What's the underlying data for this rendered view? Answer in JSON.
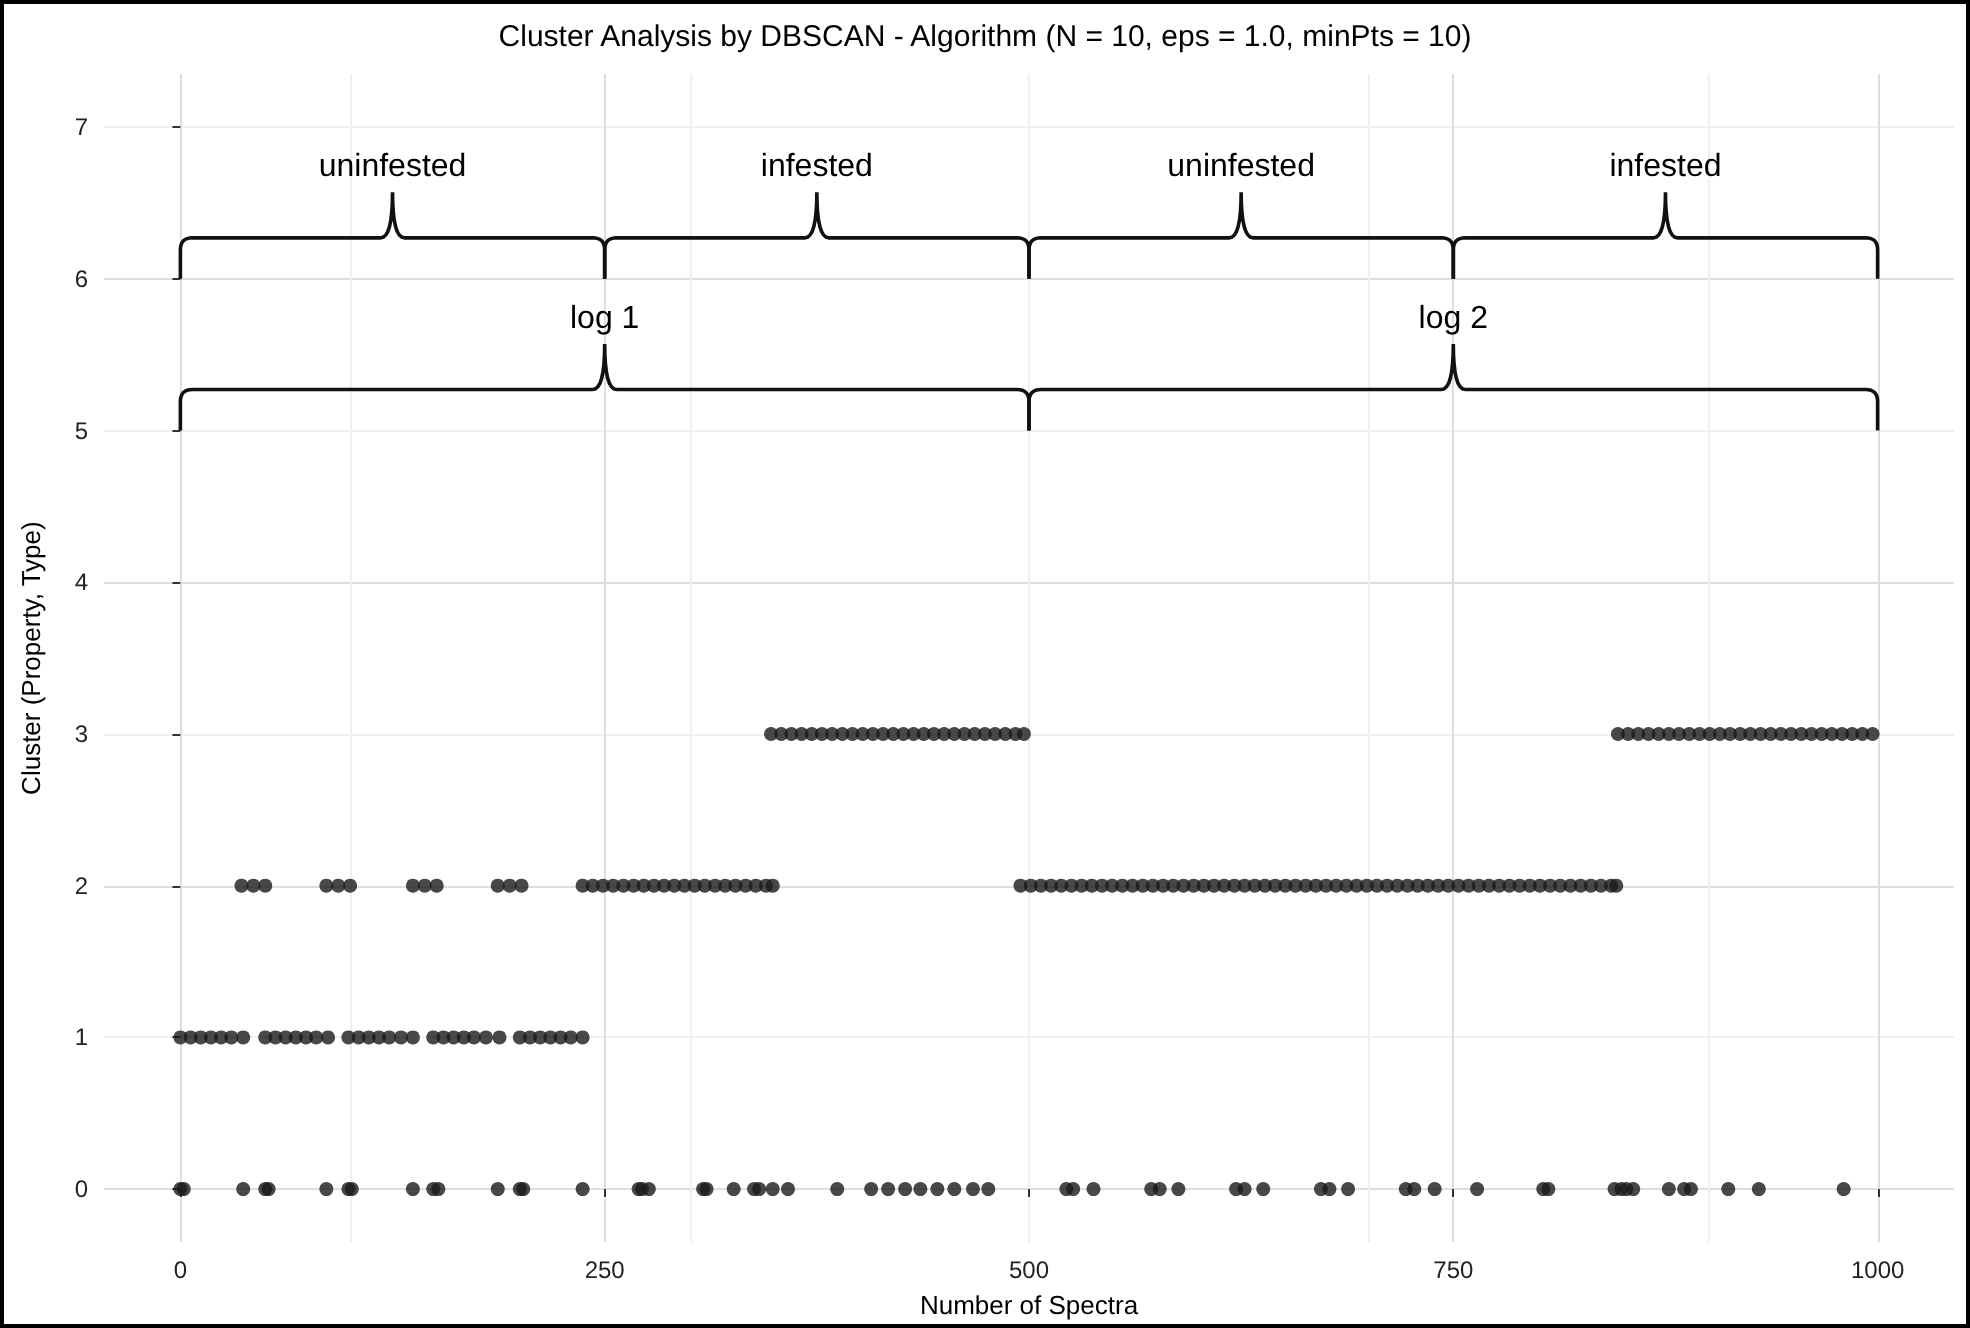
{
  "chart_data": {
    "type": "scatter",
    "title": "Cluster Analysis by DBSCAN - Algorithm (N = 10, eps = 1.0, minPts = 10)",
    "xlabel": "Number of Spectra",
    "ylabel": "Cluster (Property, Type)",
    "xlim": [
      -45,
      1045
    ],
    "xticks": [
      0,
      250,
      500,
      750,
      1000
    ],
    "ylim": [
      -0.35,
      7.35
    ],
    "yticks": [
      0,
      1,
      2,
      3,
      4,
      5,
      6,
      7
    ],
    "grid": true,
    "marker": "circle",
    "series": [
      {
        "color": "#1a1a1a",
        "x": [
          0,
          2,
          37,
          50,
          52,
          86,
          99,
          101,
          137,
          149,
          152,
          187,
          200,
          202,
          237,
          270,
          272,
          276,
          308,
          310,
          326,
          338,
          341,
          349,
          358,
          387,
          407,
          417,
          427,
          436,
          446,
          456,
          467,
          476,
          522,
          526,
          538,
          572,
          577,
          588,
          622,
          627,
          638,
          672,
          677,
          688,
          722,
          727,
          739,
          764,
          803,
          806,
          845,
          849,
          852,
          856,
          877,
          886,
          890,
          912,
          930,
          980
        ],
        "values": [
          0,
          0,
          0,
          0,
          0,
          0,
          0,
          0,
          0,
          0,
          0,
          0,
          0,
          0,
          0,
          0,
          0,
          0,
          0,
          0,
          0,
          0,
          0,
          0,
          0,
          0,
          0,
          0,
          0,
          0,
          0,
          0,
          0,
          0,
          0,
          0,
          0,
          0,
          0,
          0,
          0,
          0,
          0,
          0,
          0,
          0,
          0,
          0,
          0,
          0,
          0,
          0,
          0,
          0,
          0,
          0,
          0,
          0,
          0,
          0,
          0,
          0
        ]
      },
      {
        "color": "#1a1a1a",
        "x": [
          0,
          6,
          12,
          18,
          24,
          30,
          37,
          50,
          56,
          62,
          68,
          74,
          80,
          87,
          99,
          105,
          111,
          117,
          123,
          130,
          137,
          149,
          155,
          161,
          167,
          173,
          180,
          188,
          200,
          206,
          212,
          218,
          224,
          230,
          237
        ],
        "values": [
          1,
          1,
          1,
          1,
          1,
          1,
          1,
          1,
          1,
          1,
          1,
          1,
          1,
          1,
          1,
          1,
          1,
          1,
          1,
          1,
          1,
          1,
          1,
          1,
          1,
          1,
          1,
          1,
          1,
          1,
          1,
          1,
          1,
          1,
          1
        ]
      },
      {
        "color": "#1a1a1a",
        "x": [
          36,
          43,
          50,
          86,
          93,
          100,
          137,
          144,
          151,
          187,
          194,
          201,
          237,
          243,
          249,
          255,
          261,
          267,
          273,
          279,
          285,
          291,
          297,
          303,
          309,
          315,
          321,
          327,
          333,
          339,
          345,
          349,
          495,
          501,
          507,
          513,
          519,
          525,
          531,
          537,
          543,
          549,
          555,
          561,
          567,
          573,
          579,
          585,
          591,
          597,
          603,
          609,
          615,
          621,
          627,
          633,
          639,
          645,
          651,
          657,
          663,
          669,
          675,
          681,
          687,
          693,
          699,
          705,
          711,
          717,
          723,
          729,
          735,
          741,
          747,
          753,
          759,
          765,
          771,
          777,
          783,
          789,
          795,
          801,
          807,
          813,
          819,
          825,
          831,
          837,
          843,
          846
        ],
        "values": [
          2,
          2,
          2,
          2,
          2,
          2,
          2,
          2,
          2,
          2,
          2,
          2,
          2,
          2,
          2,
          2,
          2,
          2,
          2,
          2,
          2,
          2,
          2,
          2,
          2,
          2,
          2,
          2,
          2,
          2,
          2,
          2,
          2,
          2,
          2,
          2,
          2,
          2,
          2,
          2,
          2,
          2,
          2,
          2,
          2,
          2,
          2,
          2,
          2,
          2,
          2,
          2,
          2,
          2,
          2,
          2,
          2,
          2,
          2,
          2,
          2,
          2,
          2,
          2,
          2,
          2,
          2,
          2,
          2,
          2,
          2,
          2,
          2,
          2,
          2,
          2,
          2,
          2,
          2,
          2,
          2,
          2,
          2,
          2,
          2,
          2,
          2,
          2,
          2,
          2,
          2,
          2
        ]
      },
      {
        "color": "#1a1a1a",
        "x": [
          348,
          354,
          360,
          366,
          372,
          378,
          384,
          390,
          396,
          402,
          408,
          414,
          420,
          426,
          432,
          438,
          444,
          450,
          456,
          462,
          468,
          474,
          480,
          486,
          492,
          497,
          847,
          853,
          859,
          865,
          871,
          877,
          883,
          889,
          895,
          901,
          907,
          913,
          919,
          925,
          931,
          937,
          943,
          949,
          955,
          961,
          967,
          973,
          979,
          985,
          991,
          997
        ],
        "values": [
          3,
          3,
          3,
          3,
          3,
          3,
          3,
          3,
          3,
          3,
          3,
          3,
          3,
          3,
          3,
          3,
          3,
          3,
          3,
          3,
          3,
          3,
          3,
          3,
          3,
          3,
          3,
          3,
          3,
          3,
          3,
          3,
          3,
          3,
          3,
          3,
          3,
          3,
          3,
          3,
          3,
          3,
          3,
          3,
          3,
          3,
          3,
          3,
          3,
          3,
          3,
          3
        ]
      }
    ],
    "annotations": [
      "uninfested",
      "infested",
      "uninfested",
      "infested",
      "log 1",
      "log 2"
    ]
  }
}
